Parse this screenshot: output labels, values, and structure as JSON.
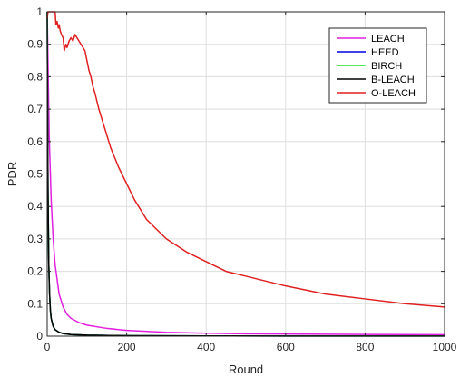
{
  "chart_data": {
    "type": "line",
    "xlabel": "Round",
    "ylabel": "PDR",
    "xlim": [
      0,
      1000
    ],
    "ylim": [
      0,
      1
    ],
    "x_ticks": [
      "0",
      "200",
      "400",
      "600",
      "800",
      "1000"
    ],
    "y_ticks": [
      "0",
      "0.1",
      "0.2",
      "0.3",
      "0.4",
      "0.5",
      "0.6",
      "0.7",
      "0.8",
      "0.9",
      "1"
    ],
    "grid": true,
    "legend_position": "top-right",
    "series": [
      {
        "name": "LEACH",
        "color": "#e020e0",
        "x": [
          0,
          2,
          5,
          10,
          15,
          20,
          30,
          40,
          50,
          60,
          80,
          100,
          150,
          200,
          300,
          400,
          500,
          600,
          700,
          800,
          900,
          1000
        ],
        "y": [
          1.0,
          0.85,
          0.62,
          0.42,
          0.3,
          0.22,
          0.13,
          0.09,
          0.067,
          0.055,
          0.042,
          0.034,
          0.024,
          0.018,
          0.012,
          0.009,
          0.0075,
          0.0065,
          0.0058,
          0.0052,
          0.0048,
          0.0045
        ]
      },
      {
        "name": "HEED",
        "color": "#0000e0",
        "x": [
          0,
          1,
          2,
          4,
          6,
          8,
          10,
          15,
          20,
          30,
          40,
          60,
          100,
          200,
          400,
          600,
          800,
          1000
        ],
        "y": [
          1.0,
          0.7,
          0.45,
          0.22,
          0.13,
          0.08,
          0.055,
          0.03,
          0.02,
          0.012,
          0.008,
          0.005,
          0.003,
          0.0015,
          0.0008,
          0.0005,
          0.0004,
          0.0003
        ]
      },
      {
        "name": "BIRCH",
        "color": "#20e020",
        "x": [
          0,
          1,
          2,
          4,
          6,
          8,
          10,
          15,
          20,
          30,
          40,
          60,
          100,
          200,
          400,
          600,
          800,
          1000
        ],
        "y": [
          1.0,
          0.7,
          0.45,
          0.22,
          0.13,
          0.08,
          0.055,
          0.03,
          0.02,
          0.012,
          0.008,
          0.005,
          0.003,
          0.0015,
          0.0008,
          0.0005,
          0.0004,
          0.0003
        ]
      },
      {
        "name": "B-LEACH",
        "color": "#000000",
        "x": [
          0,
          1,
          2,
          4,
          6,
          8,
          10,
          15,
          20,
          30,
          40,
          60,
          100,
          200,
          400,
          600,
          800,
          1000
        ],
        "y": [
          1.0,
          0.7,
          0.45,
          0.22,
          0.13,
          0.08,
          0.055,
          0.03,
          0.02,
          0.012,
          0.008,
          0.005,
          0.003,
          0.0015,
          0.0008,
          0.0005,
          0.0004,
          0.0003
        ]
      },
      {
        "name": "O-LEACH",
        "color": "#e02020",
        "x": [
          0,
          2,
          5,
          8,
          10,
          12,
          15,
          18,
          20,
          22,
          25,
          28,
          30,
          33,
          36,
          40,
          43,
          47,
          50,
          55,
          60,
          65,
          70,
          75,
          80,
          85,
          90,
          95,
          100,
          105,
          110,
          115,
          120,
          130,
          140,
          150,
          160,
          170,
          180,
          200,
          220,
          250,
          300,
          350,
          400,
          450,
          500,
          600,
          700,
          800,
          900,
          1000
        ],
        "y": [
          0.98,
          1.0,
          1.0,
          1.0,
          1.0,
          1.0,
          1.0,
          1.0,
          1.0,
          0.96,
          0.97,
          0.95,
          0.96,
          0.94,
          0.93,
          0.92,
          0.88,
          0.9,
          0.89,
          0.91,
          0.92,
          0.91,
          0.93,
          0.92,
          0.91,
          0.9,
          0.89,
          0.88,
          0.85,
          0.82,
          0.8,
          0.77,
          0.75,
          0.7,
          0.66,
          0.62,
          0.58,
          0.55,
          0.52,
          0.47,
          0.42,
          0.36,
          0.3,
          0.26,
          0.23,
          0.2,
          0.185,
          0.155,
          0.13,
          0.115,
          0.1,
          0.09
        ]
      }
    ]
  }
}
